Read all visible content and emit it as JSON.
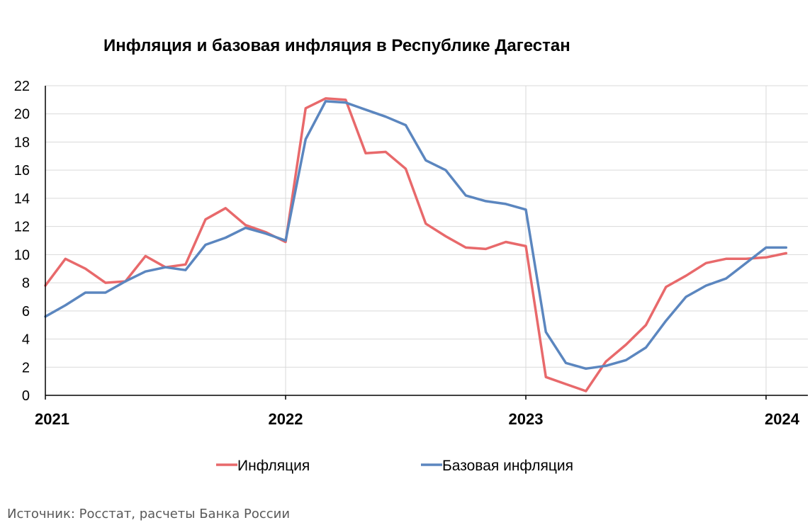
{
  "chart_data": {
    "type": "line",
    "title": "Инфляция и базовая инфляция в Республике Дагестан",
    "xlabel": "",
    "ylabel": "",
    "ylim": [
      0,
      22
    ],
    "yticks": [
      0,
      2,
      4,
      6,
      8,
      10,
      12,
      14,
      16,
      18,
      20,
      22
    ],
    "xticks": [
      "2021",
      "2022",
      "2023",
      "2024"
    ],
    "x_unit": "year",
    "grid": true,
    "legend_position": "bottom",
    "source": "Источник: Росстат, расчеты Банка России",
    "series": [
      {
        "name": "Инфляция",
        "color": "#e8696b",
        "x": [
          "2021-01",
          "2021-02",
          "2021-03",
          "2021-04",
          "2021-05",
          "2021-06",
          "2021-07",
          "2021-08",
          "2021-09",
          "2021-10",
          "2021-11",
          "2021-12",
          "2022-01",
          "2022-02",
          "2022-03",
          "2022-04",
          "2022-05",
          "2022-06",
          "2022-07",
          "2022-08",
          "2022-09",
          "2022-10",
          "2022-11",
          "2022-12",
          "2023-01",
          "2023-02",
          "2023-03",
          "2023-04",
          "2023-05",
          "2023-06",
          "2023-07",
          "2023-08",
          "2023-09",
          "2023-10",
          "2023-11",
          "2023-12",
          "2024-01",
          "2024-02"
        ],
        "values": [
          7.8,
          9.7,
          9.0,
          8.0,
          8.1,
          9.9,
          9.1,
          9.3,
          12.5,
          13.3,
          12.1,
          11.6,
          10.9,
          20.4,
          21.1,
          21.0,
          17.2,
          17.3,
          16.1,
          12.2,
          11.3,
          10.5,
          10.4,
          10.9,
          10.6,
          1.3,
          0.8,
          0.3,
          2.4,
          3.6,
          5.0,
          7.7,
          8.5,
          9.4,
          9.7,
          9.7,
          9.8,
          10.1
        ]
      },
      {
        "name": "Базовая инфляция",
        "color": "#5b86bf",
        "x": [
          "2021-01",
          "2021-02",
          "2021-03",
          "2021-04",
          "2021-05",
          "2021-06",
          "2021-07",
          "2021-08",
          "2021-09",
          "2021-10",
          "2021-11",
          "2021-12",
          "2022-01",
          "2022-02",
          "2022-03",
          "2022-04",
          "2022-05",
          "2022-06",
          "2022-07",
          "2022-08",
          "2022-09",
          "2022-10",
          "2022-11",
          "2022-12",
          "2023-01",
          "2023-02",
          "2023-03",
          "2023-04",
          "2023-05",
          "2023-06",
          "2023-07",
          "2023-08",
          "2023-09",
          "2023-10",
          "2023-11",
          "2023-12",
          "2024-01",
          "2024-02"
        ],
        "values": [
          5.6,
          6.4,
          7.3,
          7.3,
          8.1,
          8.8,
          9.1,
          8.9,
          10.7,
          11.2,
          11.9,
          11.5,
          11.0,
          18.2,
          20.9,
          20.8,
          20.3,
          19.8,
          19.2,
          16.7,
          16.0,
          14.2,
          13.8,
          13.6,
          13.2,
          4.5,
          2.3,
          1.9,
          2.1,
          2.5,
          3.4,
          5.3,
          7.0,
          7.8,
          8.3,
          9.4,
          10.5,
          10.5
        ]
      }
    ]
  }
}
